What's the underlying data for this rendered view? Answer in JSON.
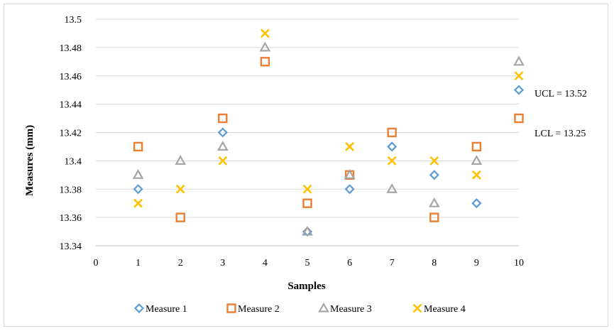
{
  "chart_data": {
    "type": "scatter",
    "title": "",
    "xlabel": "Samples",
    "ylabel": "Measures (mm)",
    "xlim": [
      0,
      10
    ],
    "ylim": [
      13.34,
      13.5
    ],
    "x_ticks": [
      "0",
      "1",
      "2",
      "3",
      "4",
      "5",
      "6",
      "7",
      "8",
      "9",
      "10"
    ],
    "y_ticks": [
      "13.34",
      "13.36",
      "13.38",
      "13.4",
      "13.42",
      "13.44",
      "13.46",
      "13.48",
      "13.5"
    ],
    "grid": "horizontal",
    "legend_position": "bottom",
    "x": [
      1,
      2,
      3,
      4,
      5,
      6,
      7,
      8,
      9,
      10
    ],
    "series": [
      {
        "name": "Measure 1",
        "marker": "diamond",
        "color": "#5b9bd5",
        "values": [
          13.38,
          null,
          13.42,
          null,
          13.35,
          13.38,
          13.41,
          13.39,
          13.37,
          13.45
        ]
      },
      {
        "name": "Measure 2",
        "marker": "square",
        "color": "#ed7d31",
        "values": [
          13.41,
          13.36,
          13.43,
          13.47,
          13.37,
          13.39,
          13.42,
          13.36,
          13.41,
          13.43
        ]
      },
      {
        "name": "Measure 3",
        "marker": "triangle",
        "color": "#a5a5a5",
        "values": [
          13.39,
          13.4,
          13.41,
          13.48,
          13.35,
          13.39,
          13.38,
          13.37,
          13.4,
          13.47
        ]
      },
      {
        "name": "Measure 4",
        "marker": "x",
        "color": "#ffc000",
        "values": [
          13.37,
          13.38,
          13.4,
          13.49,
          13.38,
          13.41,
          13.4,
          13.4,
          13.39,
          13.46
        ]
      }
    ],
    "annotations": [
      {
        "text": "UCL = 13.52"
      },
      {
        "text": "LCL = 13.25"
      }
    ]
  }
}
